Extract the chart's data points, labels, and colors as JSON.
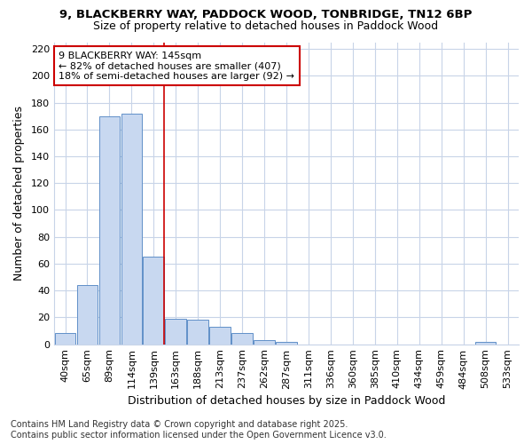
{
  "title_line1": "9, BLACKBERRY WAY, PADDOCK WOOD, TONBRIDGE, TN12 6BP",
  "title_line2": "Size of property relative to detached houses in Paddock Wood",
  "xlabel": "Distribution of detached houses by size in Paddock Wood",
  "ylabel": "Number of detached properties",
  "categories": [
    "40sqm",
    "65sqm",
    "89sqm",
    "114sqm",
    "139sqm",
    "163sqm",
    "188sqm",
    "213sqm",
    "237sqm",
    "262sqm",
    "287sqm",
    "311sqm",
    "336sqm",
    "360sqm",
    "385sqm",
    "410sqm",
    "434sqm",
    "459sqm",
    "484sqm",
    "508sqm",
    "533sqm"
  ],
  "values": [
    8,
    44,
    170,
    172,
    65,
    19,
    18,
    13,
    8,
    3,
    2,
    0,
    0,
    0,
    0,
    0,
    0,
    0,
    0,
    2,
    0
  ],
  "bar_color": "#c8d8f0",
  "bar_edge_color": "#6090c8",
  "subject_line_index": 4,
  "annotation_text_line1": "9 BLACKBERRY WAY: 145sqm",
  "annotation_text_line2": "← 82% of detached houses are smaller (407)",
  "annotation_text_line3": "18% of semi-detached houses are larger (92) →",
  "annotation_box_color": "#ffffff",
  "annotation_box_edge_color": "#cc0000",
  "subject_line_color": "#cc0000",
  "ylim": [
    0,
    225
  ],
  "yticks": [
    0,
    20,
    40,
    60,
    80,
    100,
    120,
    140,
    160,
    180,
    200,
    220
  ],
  "background_color": "#ffffff",
  "plot_bg_color": "#ffffff",
  "grid_color": "#c8d4e8",
  "footer_line1": "Contains HM Land Registry data © Crown copyright and database right 2025.",
  "footer_line2": "Contains public sector information licensed under the Open Government Licence v3.0.",
  "title_fontsize": 9.5,
  "subtitle_fontsize": 9,
  "axis_label_fontsize": 9,
  "tick_fontsize": 8,
  "annotation_fontsize": 8,
  "footer_fontsize": 7
}
